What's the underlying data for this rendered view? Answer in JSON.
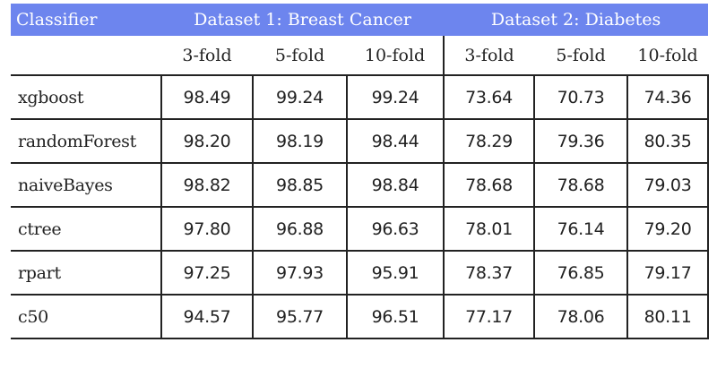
{
  "header": {
    "classifier": "Classifier",
    "dataset1": "Dataset 1: Breast Cancer",
    "dataset2": "Dataset 2: Diabetes"
  },
  "folds": [
    "3-fold",
    "5-fold",
    "10-fold",
    "3-fold",
    "5-fold",
    "10-fold"
  ],
  "rows": [
    {
      "name": "xgboost",
      "values": [
        "98.49",
        "99.24",
        "99.24",
        "73.64",
        "70.73",
        "74.36"
      ]
    },
    {
      "name": "randomForest",
      "values": [
        "98.20",
        "98.19",
        "98.44",
        "78.29",
        "79.36",
        "80.35"
      ]
    },
    {
      "name": "naiveBayes",
      "values": [
        "98.82",
        "98.85",
        "98.84",
        "78.68",
        "78.68",
        "79.03"
      ]
    },
    {
      "name": "ctree",
      "values": [
        "97.80",
        "96.88",
        "96.63",
        "78.01",
        "76.14",
        "79.20"
      ]
    },
    {
      "name": "rpart",
      "values": [
        "97.25",
        "97.93",
        "95.91",
        "78.37",
        "76.85",
        "79.17"
      ]
    },
    {
      "name": "c50",
      "values": [
        "94.57",
        "95.77",
        "96.51",
        "77.17",
        "78.06",
        "80.11"
      ]
    }
  ],
  "colors": {
    "header_bg": "#6d85ee",
    "header_text": "#ffffff",
    "grid": "#222222"
  }
}
